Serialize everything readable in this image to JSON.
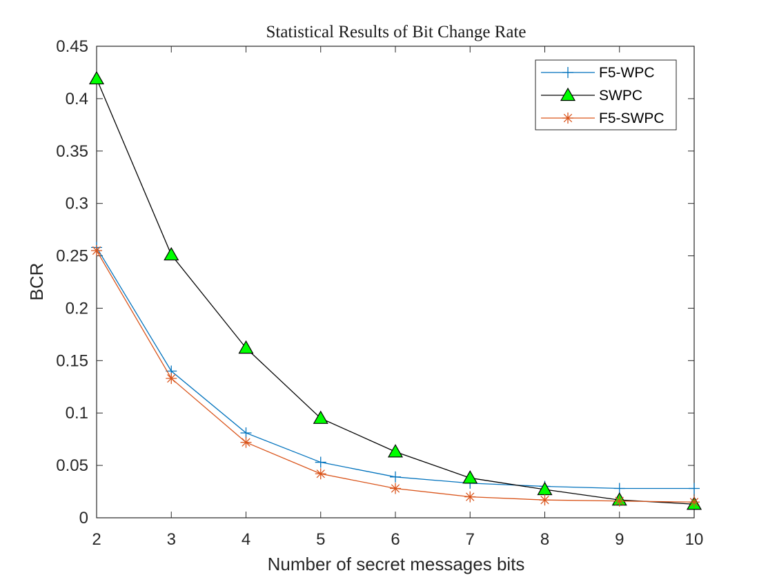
{
  "chart_data": {
    "type": "line",
    "title": "Statistical Results of Bit Change Rate",
    "xlabel": "Number of secret messages bits",
    "ylabel": "BCR",
    "x": [
      2,
      3,
      4,
      5,
      6,
      7,
      8,
      9,
      10
    ],
    "xlim": [
      2,
      10
    ],
    "ylim": [
      0,
      0.45
    ],
    "x_ticks": [
      "2",
      "3",
      "4",
      "5",
      "6",
      "7",
      "8",
      "9",
      "10"
    ],
    "y_ticks": [
      "0",
      "0.05",
      "0.1",
      "0.15",
      "0.2",
      "0.25",
      "0.3",
      "0.35",
      "0.4",
      "0.45"
    ],
    "grid": false,
    "legend_position": "top-right",
    "series": [
      {
        "name": "F5-WPC",
        "color": "#0072BD",
        "marker": "plus",
        "values": [
          0.258,
          0.14,
          0.081,
          0.053,
          0.039,
          0.033,
          0.03,
          0.028,
          0.028
        ]
      },
      {
        "name": "SWPC",
        "color": "#000000",
        "marker": "triangle",
        "marker_fill": "#00FF00",
        "values": [
          0.419,
          0.251,
          0.162,
          0.095,
          0.063,
          0.038,
          0.027,
          0.017,
          0.013
        ]
      },
      {
        "name": "F5-SWPC",
        "color": "#D95319",
        "marker": "asterisk",
        "values": [
          0.255,
          0.133,
          0.072,
          0.042,
          0.028,
          0.02,
          0.017,
          0.016,
          0.015
        ]
      }
    ]
  }
}
